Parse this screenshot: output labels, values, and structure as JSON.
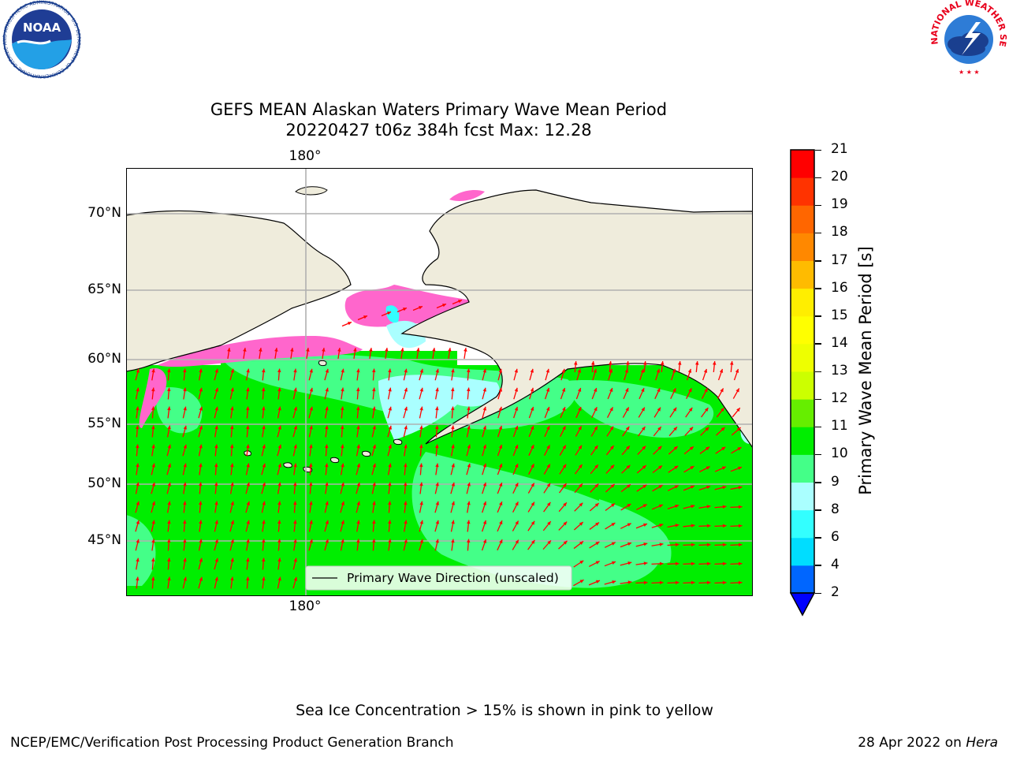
{
  "title": {
    "line1": "GEFS MEAN Alaskan Waters Primary Wave Mean Period",
    "line2": "20220427 t06z 384h fcst   Max: 12.28"
  },
  "map": {
    "lat_labels": [
      "70°N",
      "65°N",
      "60°N",
      "55°N",
      "50°N",
      "45°N"
    ],
    "lon_label_top": "180°",
    "lon_label_bottom": "180°",
    "legend_label": "Primary Wave Direction (unscaled)",
    "legend_placement": "bottom-center",
    "arrow_color": "#ff0000"
  },
  "colorbar": {
    "label": "Primary Wave Mean Period [s]",
    "ticks": [
      "2",
      "4",
      "6",
      "8",
      "9",
      "10",
      "11",
      "12",
      "13",
      "14",
      "15",
      "16",
      "17",
      "18",
      "19",
      "20",
      "21"
    ],
    "colors": [
      "#0066ff",
      "#00ddff",
      "#33ffff",
      "#aaffff",
      "#44ff88",
      "#00ee00",
      "#66ee00",
      "#ccff00",
      "#eeff00",
      "#ffff00",
      "#ffee00",
      "#ffbb00",
      "#ff8800",
      "#ff6600",
      "#ff3300",
      "#ff0000"
    ],
    "under_color": "#0000ff"
  },
  "colors": {
    "land": "#efecdc",
    "ocean_high": "#00ee00",
    "ocean_mid": "#44ff88",
    "ocean_low": "#aaffff",
    "ice": "#ff66cc"
  },
  "footer": {
    "note": "Sea Ice Concentration > 15% is shown in pink to yellow",
    "left_credit": "NCEP/EMC/Verification Post Processing Product Generation Branch",
    "right_credit_date": "28 Apr 2022 on ",
    "right_credit_machine": "Hera"
  },
  "logos": {
    "noaa": "NOAA",
    "noaa_ring": "NATIONAL OCEANIC AND ATMOSPHERIC ADMINISTRATION · U.S. DEPARTMENT OF COMMERCE",
    "nws_ring": "NATIONAL WEATHER SERVICE"
  }
}
